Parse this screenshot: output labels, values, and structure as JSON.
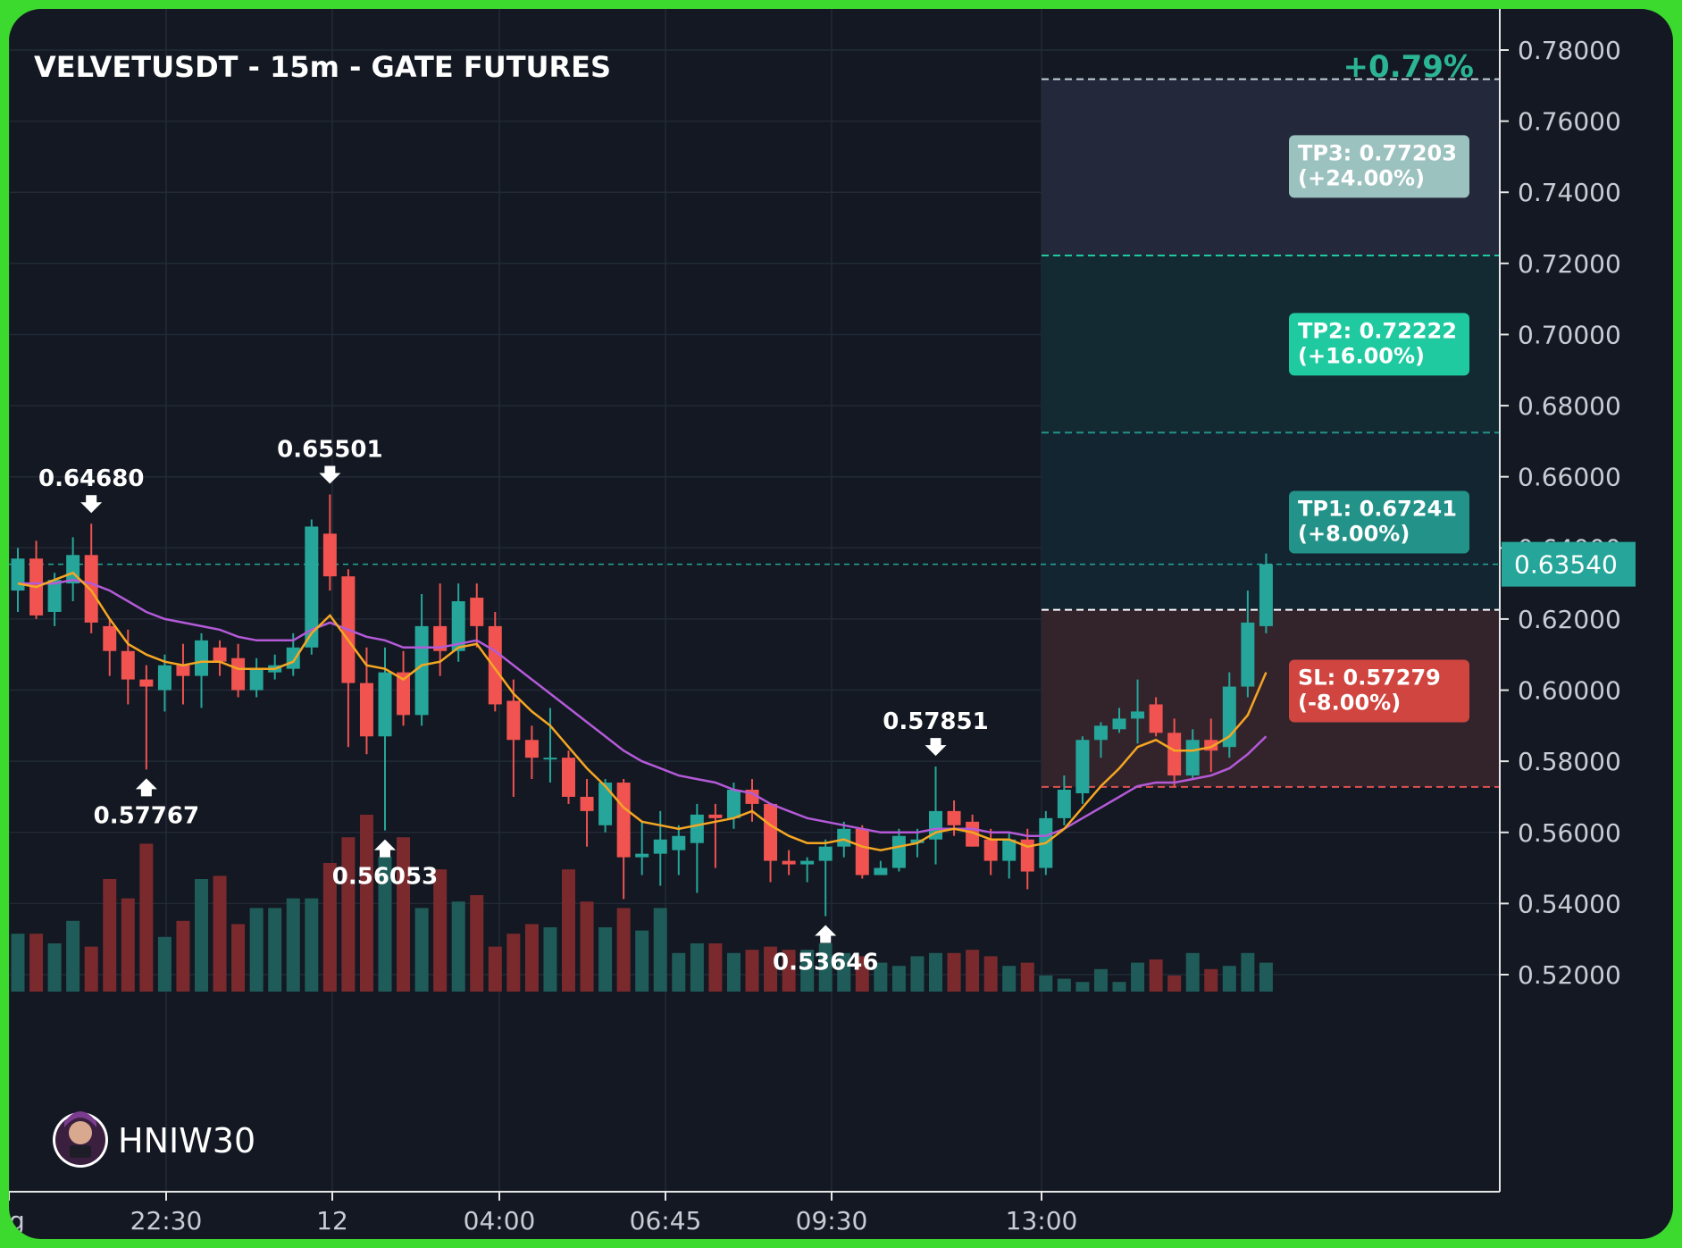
{
  "chart_data": {
    "type": "candlestick",
    "title": "VELVETUSDT - 15m - GATE FUTURES",
    "change_label": "+0.79%",
    "ylim": [
      0.51,
      0.785
    ],
    "y_ticks": [
      "0.78000",
      "0.76000",
      "0.74000",
      "0.72000",
      "0.70000",
      "0.68000",
      "0.66000",
      "0.64000",
      "0.62000",
      "0.60000",
      "0.58000",
      "0.56000",
      "0.54000",
      "0.52000"
    ],
    "x_ticks": [
      "g",
      "22:30",
      "12",
      "04:00",
      "06:45",
      "09:30",
      "13:00"
    ],
    "current_price": "0.63540",
    "candles": [
      {
        "o": 0.628,
        "h": 0.64,
        "l": 0.622,
        "c": 0.637
      },
      {
        "o": 0.637,
        "h": 0.642,
        "l": 0.62,
        "c": 0.621
      },
      {
        "o": 0.622,
        "h": 0.633,
        "l": 0.618,
        "c": 0.631
      },
      {
        "o": 0.63,
        "h": 0.643,
        "l": 0.625,
        "c": 0.638
      },
      {
        "o": 0.638,
        "h": 0.6468,
        "l": 0.616,
        "c": 0.619
      },
      {
        "o": 0.618,
        "h": 0.62,
        "l": 0.604,
        "c": 0.611
      },
      {
        "o": 0.611,
        "h": 0.617,
        "l": 0.596,
        "c": 0.603
      },
      {
        "o": 0.603,
        "h": 0.607,
        "l": 0.57767,
        "c": 0.601
      },
      {
        "o": 0.6,
        "h": 0.61,
        "l": 0.594,
        "c": 0.607
      },
      {
        "o": 0.607,
        "h": 0.613,
        "l": 0.596,
        "c": 0.604
      },
      {
        "o": 0.604,
        "h": 0.616,
        "l": 0.595,
        "c": 0.614
      },
      {
        "o": 0.612,
        "h": 0.614,
        "l": 0.604,
        "c": 0.608
      },
      {
        "o": 0.609,
        "h": 0.613,
        "l": 0.598,
        "c": 0.6
      },
      {
        "o": 0.6,
        "h": 0.609,
        "l": 0.598,
        "c": 0.606
      },
      {
        "o": 0.605,
        "h": 0.61,
        "l": 0.603,
        "c": 0.607
      },
      {
        "o": 0.606,
        "h": 0.616,
        "l": 0.604,
        "c": 0.612
      },
      {
        "o": 0.612,
        "h": 0.648,
        "l": 0.61,
        "c": 0.646
      },
      {
        "o": 0.644,
        "h": 0.65501,
        "l": 0.628,
        "c": 0.632
      },
      {
        "o": 0.632,
        "h": 0.634,
        "l": 0.584,
        "c": 0.602
      },
      {
        "o": 0.602,
        "h": 0.612,
        "l": 0.582,
        "c": 0.587
      },
      {
        "o": 0.587,
        "h": 0.612,
        "l": 0.56053,
        "c": 0.605
      },
      {
        "o": 0.605,
        "h": 0.611,
        "l": 0.59,
        "c": 0.593
      },
      {
        "o": 0.593,
        "h": 0.627,
        "l": 0.59,
        "c": 0.618
      },
      {
        "o": 0.618,
        "h": 0.63,
        "l": 0.604,
        "c": 0.611
      },
      {
        "o": 0.611,
        "h": 0.63,
        "l": 0.608,
        "c": 0.625
      },
      {
        "o": 0.626,
        "h": 0.63,
        "l": 0.612,
        "c": 0.618
      },
      {
        "o": 0.618,
        "h": 0.622,
        "l": 0.594,
        "c": 0.596
      },
      {
        "o": 0.597,
        "h": 0.603,
        "l": 0.57,
        "c": 0.586
      },
      {
        "o": 0.586,
        "h": 0.59,
        "l": 0.575,
        "c": 0.581
      },
      {
        "o": 0.581,
        "h": 0.595,
        "l": 0.574,
        "c": 0.581
      },
      {
        "o": 0.581,
        "h": 0.583,
        "l": 0.568,
        "c": 0.57
      },
      {
        "o": 0.57,
        "h": 0.575,
        "l": 0.556,
        "c": 0.566
      },
      {
        "o": 0.562,
        "h": 0.575,
        "l": 0.56,
        "c": 0.574
      },
      {
        "o": 0.574,
        "h": 0.575,
        "l": 0.54127,
        "c": 0.553
      },
      {
        "o": 0.553,
        "h": 0.563,
        "l": 0.548,
        "c": 0.554
      },
      {
        "o": 0.554,
        "h": 0.566,
        "l": 0.545,
        "c": 0.558
      },
      {
        "o": 0.555,
        "h": 0.562,
        "l": 0.548,
        "c": 0.559
      },
      {
        "o": 0.557,
        "h": 0.568,
        "l": 0.543,
        "c": 0.565
      },
      {
        "o": 0.565,
        "h": 0.568,
        "l": 0.55,
        "c": 0.564
      },
      {
        "o": 0.564,
        "h": 0.574,
        "l": 0.561,
        "c": 0.572
      },
      {
        "o": 0.572,
        "h": 0.575,
        "l": 0.563,
        "c": 0.568
      },
      {
        "o": 0.568,
        "h": 0.568,
        "l": 0.546,
        "c": 0.552
      },
      {
        "o": 0.552,
        "h": 0.555,
        "l": 0.548,
        "c": 0.551
      },
      {
        "o": 0.551,
        "h": 0.553,
        "l": 0.546,
        "c": 0.552
      },
      {
        "o": 0.552,
        "h": 0.558,
        "l": 0.53646,
        "c": 0.556
      },
      {
        "o": 0.556,
        "h": 0.563,
        "l": 0.553,
        "c": 0.561
      },
      {
        "o": 0.561,
        "h": 0.562,
        "l": 0.547,
        "c": 0.548
      },
      {
        "o": 0.548,
        "h": 0.552,
        "l": 0.549,
        "c": 0.55
      },
      {
        "o": 0.55,
        "h": 0.561,
        "l": 0.549,
        "c": 0.559
      },
      {
        "o": 0.557,
        "h": 0.561,
        "l": 0.553,
        "c": 0.558
      },
      {
        "o": 0.558,
        "h": 0.57851,
        "l": 0.551,
        "c": 0.566
      },
      {
        "o": 0.566,
        "h": 0.569,
        "l": 0.559,
        "c": 0.562
      },
      {
        "o": 0.563,
        "h": 0.565,
        "l": 0.556,
        "c": 0.556
      },
      {
        "o": 0.558,
        "h": 0.561,
        "l": 0.548,
        "c": 0.552
      },
      {
        "o": 0.552,
        "h": 0.56,
        "l": 0.547,
        "c": 0.558
      },
      {
        "o": 0.558,
        "h": 0.561,
        "l": 0.544,
        "c": 0.549
      },
      {
        "o": 0.55,
        "h": 0.566,
        "l": 0.548,
        "c": 0.564
      },
      {
        "o": 0.564,
        "h": 0.576,
        "l": 0.562,
        "c": 0.572
      },
      {
        "o": 0.571,
        "h": 0.587,
        "l": 0.568,
        "c": 0.586
      },
      {
        "o": 0.586,
        "h": 0.591,
        "l": 0.581,
        "c": 0.59
      },
      {
        "o": 0.589,
        "h": 0.595,
        "l": 0.588,
        "c": 0.592
      },
      {
        "o": 0.592,
        "h": 0.603,
        "l": 0.585,
        "c": 0.594
      },
      {
        "o": 0.596,
        "h": 0.598,
        "l": 0.587,
        "c": 0.588
      },
      {
        "o": 0.588,
        "h": 0.592,
        "l": 0.573,
        "c": 0.576
      },
      {
        "o": 0.576,
        "h": 0.589,
        "l": 0.575,
        "c": 0.586
      },
      {
        "o": 0.586,
        "h": 0.592,
        "l": 0.577,
        "c": 0.583
      },
      {
        "o": 0.584,
        "h": 0.605,
        "l": 0.581,
        "c": 0.601
      },
      {
        "o": 0.601,
        "h": 0.628,
        "l": 0.598,
        "c": 0.619
      },
      {
        "o": 0.618,
        "h": 0.6384,
        "l": 0.616,
        "c": 0.6354
      }
    ],
    "volumes": [
      0.18,
      0.18,
      0.15,
      0.22,
      0.14,
      0.35,
      0.29,
      0.46,
      0.17,
      0.22,
      0.35,
      0.36,
      0.21,
      0.26,
      0.26,
      0.29,
      0.29,
      0.4,
      0.48,
      0.55,
      0.42,
      0.48,
      0.26,
      0.38,
      0.28,
      0.3,
      0.14,
      0.18,
      0.21,
      0.2,
      0.38,
      0.28,
      0.2,
      0.26,
      0.19,
      0.26,
      0.12,
      0.15,
      0.15,
      0.12,
      0.13,
      0.14,
      0.13,
      0.13,
      0.15,
      0.12,
      0.11,
      0.09,
      0.08,
      0.11,
      0.12,
      0.12,
      0.13,
      0.11,
      0.08,
      0.09,
      0.05,
      0.04,
      0.03,
      0.07,
      0.03,
      0.09,
      0.1,
      0.05,
      0.12,
      0.07,
      0.08,
      0.12,
      0.09
    ],
    "ema_fast": [
      0.63,
      0.629,
      0.631,
      0.633,
      0.628,
      0.62,
      0.613,
      0.61,
      0.608,
      0.607,
      0.608,
      0.608,
      0.606,
      0.606,
      0.606,
      0.608,
      0.616,
      0.621,
      0.614,
      0.607,
      0.606,
      0.603,
      0.607,
      0.608,
      0.612,
      0.613,
      0.606,
      0.599,
      0.594,
      0.59,
      0.584,
      0.578,
      0.573,
      0.567,
      0.563,
      0.562,
      0.561,
      0.562,
      0.563,
      0.564,
      0.566,
      0.562,
      0.559,
      0.557,
      0.557,
      0.558,
      0.556,
      0.555,
      0.556,
      0.557,
      0.56,
      0.561,
      0.56,
      0.558,
      0.558,
      0.556,
      0.557,
      0.561,
      0.567,
      0.573,
      0.578,
      0.584,
      0.586,
      0.583,
      0.583,
      0.584,
      0.587,
      0.593,
      0.605
    ],
    "ema_slow": [
      0.63,
      0.63,
      0.63,
      0.631,
      0.63,
      0.628,
      0.625,
      0.622,
      0.62,
      0.619,
      0.618,
      0.617,
      0.615,
      0.614,
      0.614,
      0.614,
      0.617,
      0.619,
      0.617,
      0.615,
      0.614,
      0.612,
      0.612,
      0.612,
      0.613,
      0.614,
      0.611,
      0.607,
      0.603,
      0.599,
      0.595,
      0.591,
      0.587,
      0.583,
      0.58,
      0.578,
      0.576,
      0.575,
      0.574,
      0.572,
      0.571,
      0.568,
      0.566,
      0.564,
      0.563,
      0.562,
      0.561,
      0.56,
      0.56,
      0.56,
      0.561,
      0.561,
      0.561,
      0.56,
      0.56,
      0.559,
      0.559,
      0.561,
      0.564,
      0.567,
      0.57,
      0.573,
      0.574,
      0.574,
      0.575,
      0.576,
      0.578,
      0.582,
      0.587
    ],
    "annotations": [
      {
        "label": "0.64680",
        "candle": 4,
        "price": 0.6468,
        "dir": "down"
      },
      {
        "label": "0.65501",
        "candle": 17,
        "price": 0.65501,
        "dir": "down"
      },
      {
        "label": "0.57767",
        "candle": 7,
        "price": 0.57767,
        "dir": "up"
      },
      {
        "label": "0.56053",
        "candle": 20,
        "price": 0.56053,
        "dir": "up"
      },
      {
        "label": "0.53646",
        "candle": 44,
        "price": 0.53646,
        "dir": "up"
      },
      {
        "label": "0.57851",
        "candle": 50,
        "price": 0.57851,
        "dir": "down"
      }
    ],
    "targets": [
      {
        "label": "TP3: 0.77203",
        "pct": "(+24.00%)",
        "price": 0.77203,
        "color": "#9cc2c0",
        "line": "#b7c7d1"
      },
      {
        "label": "TP2: 0.72222",
        "pct": "(+16.00%)",
        "price": 0.72222,
        "color": "#1fcaa0",
        "line": "#1fcaa0"
      },
      {
        "label": "TP1: 0.67241",
        "pct": "(+8.00%)",
        "price": 0.67241,
        "color": "#239289",
        "line": "#239289"
      },
      {
        "label": "SL: 0.57279",
        "pct": "(-8.00%)",
        "price": 0.57279,
        "color": "#d0453f",
        "line": "#e05050"
      }
    ],
    "entry_price": 0.6226,
    "colors": {
      "up": "#26a69a",
      "down": "#f05350",
      "ema_fast": "#f5a623",
      "ema_slow": "#b45ad8",
      "grid": "#222a36",
      "text": "#c8ccd4"
    }
  },
  "footer": {
    "username": "HNIW30"
  }
}
